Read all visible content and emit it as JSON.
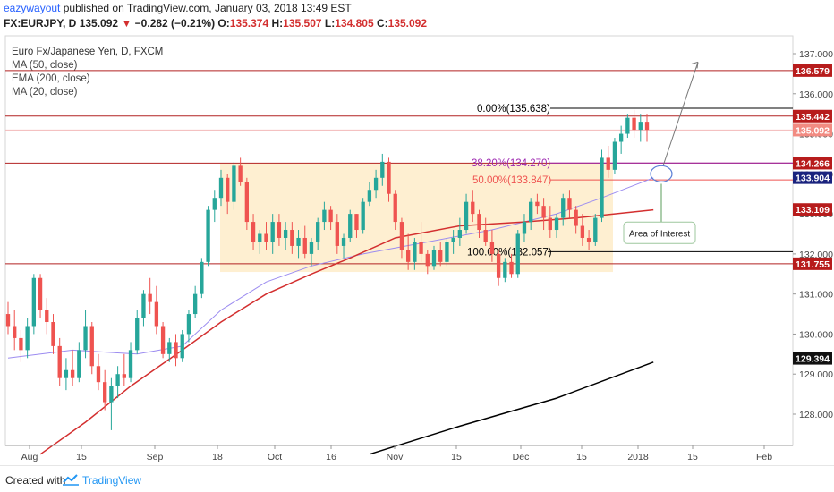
{
  "header": {
    "author": "eazywayout",
    "published_text": "published on TradingView.com, January 03, 2018 13:49 EST",
    "symbol": "FX:EURJPY, D",
    "price": "135.092",
    "change": "−0.282 (−0.21%)",
    "o_label": "O:",
    "o_value": "135.374",
    "h_label": "H:",
    "h_value": "135.507",
    "l_label": "L:",
    "l_value": "134.805",
    "c_label": "C:",
    "c_value": "135.092"
  },
  "footer": {
    "created_with": "Created with",
    "brand": "TradingView"
  },
  "colors": {
    "up": "#26a69a",
    "down": "#ef5350",
    "horizontal_lines": "#b22222",
    "ma50": "#9c8cf0",
    "ema200": "#000000",
    "ma20": "#d32f2f",
    "range_fill": "#fde9c2",
    "fib_382": "#9c27b0",
    "fib_50": "#ef5350",
    "fib_0": "#000000",
    "badge_red": "#b71c1c",
    "badge_blue": "#1a237e",
    "badge_black": "#111111"
  },
  "chart_data": {
    "type": "candlestick",
    "title": "Euro Fx/Japanese Yen, D, FXCM",
    "indicators": [
      "MA (50, close)",
      "EMA (200, close)",
      "MA (20, close)"
    ],
    "y_ticks": [
      "137.000",
      "136.000",
      "135.000",
      "134.000",
      "133.000",
      "132.000",
      "131.000",
      "130.000",
      "129.000",
      "128.000"
    ],
    "x_ticks": [
      "Aug",
      "15",
      "Sep",
      "18",
      "Oct",
      "16",
      "Nov",
      "15",
      "Dec",
      "15",
      "2018",
      "15",
      "Feb"
    ],
    "ylim": [
      127.0,
      137.5
    ],
    "horizontal_levels": [
      136.579,
      135.442,
      134.266,
      131.755
    ],
    "price_badges": [
      {
        "value": "136.579",
        "style": "red"
      },
      {
        "value": "135.442",
        "style": "red"
      },
      {
        "value": "135.092",
        "style": "salmon"
      },
      {
        "value": "134.266",
        "style": "red"
      },
      {
        "value": "133.904",
        "style": "blue"
      },
      {
        "value": "133.109",
        "style": "red"
      },
      {
        "value": "131.755",
        "style": "red"
      },
      {
        "value": "129.394",
        "style": "black"
      }
    ],
    "fibonacci": [
      {
        "label": "0.00%(135.638)",
        "value": 135.638
      },
      {
        "label": "38.20%(134.270)",
        "value": 134.27
      },
      {
        "label": "50.00%(133.847)",
        "value": 133.847
      },
      {
        "label": "100.00%(132.057)",
        "value": 132.057
      }
    ],
    "annotation": "Area of Interest",
    "range_box": {
      "top": 134.27,
      "bottom": 131.55
    },
    "candles": [
      [
        130.5,
        130.8,
        130.0,
        130.2
      ],
      [
        130.2,
        130.6,
        129.6,
        129.9
      ],
      [
        129.9,
        130.1,
        129.3,
        129.6
      ],
      [
        129.6,
        130.4,
        129.4,
        130.2
      ],
      [
        130.2,
        131.5,
        130.0,
        131.4
      ],
      [
        131.4,
        131.5,
        130.4,
        130.6
      ],
      [
        130.6,
        130.9,
        130.0,
        130.3
      ],
      [
        130.3,
        130.5,
        129.5,
        129.7
      ],
      [
        129.7,
        129.9,
        128.7,
        128.9
      ],
      [
        128.9,
        129.4,
        128.6,
        129.1
      ],
      [
        129.1,
        129.6,
        128.7,
        128.9
      ],
      [
        128.9,
        129.8,
        128.8,
        129.6
      ],
      [
        129.6,
        130.6,
        129.4,
        130.2
      ],
      [
        130.2,
        130.3,
        129.0,
        129.2
      ],
      [
        129.2,
        129.5,
        128.6,
        128.8
      ],
      [
        128.8,
        129.1,
        128.1,
        128.3
      ],
      [
        128.3,
        128.9,
        127.6,
        128.7
      ],
      [
        128.7,
        129.2,
        128.4,
        129.0
      ],
      [
        129.0,
        129.5,
        128.7,
        128.9
      ],
      [
        128.9,
        129.8,
        128.8,
        129.6
      ],
      [
        129.6,
        130.6,
        129.5,
        130.4
      ],
      [
        130.4,
        131.1,
        130.2,
        131.0
      ],
      [
        131.0,
        131.4,
        130.5,
        130.8
      ],
      [
        130.8,
        131.2,
        130.0,
        130.2
      ],
      [
        130.2,
        130.3,
        129.4,
        129.5
      ],
      [
        129.5,
        129.9,
        129.3,
        129.8
      ],
      [
        129.8,
        130.0,
        129.2,
        129.4
      ],
      [
        129.4,
        130.1,
        129.3,
        130.0
      ],
      [
        130.0,
        130.6,
        129.8,
        130.5
      ],
      [
        130.5,
        131.2,
        130.4,
        131.0
      ],
      [
        131.0,
        131.9,
        130.9,
        131.8
      ],
      [
        131.8,
        133.2,
        131.7,
        133.1
      ],
      [
        133.1,
        133.6,
        132.8,
        133.4
      ],
      [
        133.4,
        134.1,
        133.2,
        133.9
      ],
      [
        133.9,
        134.0,
        133.0,
        133.3
      ],
      [
        133.3,
        134.3,
        133.1,
        134.2
      ],
      [
        134.2,
        134.4,
        133.7,
        133.8
      ],
      [
        133.8,
        133.9,
        132.6,
        132.8
      ],
      [
        132.8,
        133.0,
        132.1,
        132.3
      ],
      [
        132.3,
        132.6,
        132.0,
        132.5
      ],
      [
        132.5,
        132.8,
        132.1,
        132.3
      ],
      [
        132.3,
        133.0,
        132.0,
        132.8
      ],
      [
        132.8,
        133.0,
        132.2,
        132.4
      ],
      [
        132.4,
        132.8,
        132.1,
        132.6
      ],
      [
        132.6,
        132.8,
        132.0,
        132.2
      ],
      [
        132.2,
        132.6,
        131.9,
        132.4
      ],
      [
        132.4,
        132.7,
        131.9,
        132.0
      ],
      [
        132.0,
        132.4,
        131.7,
        132.3
      ],
      [
        132.3,
        132.9,
        132.1,
        132.8
      ],
      [
        132.8,
        133.3,
        132.6,
        133.1
      ],
      [
        133.1,
        133.2,
        132.6,
        132.8
      ],
      [
        132.8,
        133.0,
        132.0,
        132.2
      ],
      [
        132.2,
        132.5,
        131.9,
        132.4
      ],
      [
        132.4,
        133.1,
        132.3,
        133.0
      ],
      [
        133.0,
        133.0,
        132.4,
        132.6
      ],
      [
        132.6,
        133.4,
        132.5,
        133.3
      ],
      [
        133.3,
        133.8,
        133.2,
        133.6
      ],
      [
        133.6,
        134.1,
        133.4,
        133.9
      ],
      [
        133.9,
        134.5,
        133.7,
        134.3
      ],
      [
        134.3,
        134.4,
        133.3,
        133.5
      ],
      [
        133.5,
        133.6,
        132.6,
        132.8
      ],
      [
        132.8,
        132.9,
        131.9,
        132.1
      ],
      [
        132.1,
        132.5,
        131.6,
        131.8
      ],
      [
        131.8,
        132.4,
        131.6,
        132.3
      ],
      [
        132.3,
        132.8,
        131.8,
        132.0
      ],
      [
        132.0,
        132.1,
        131.5,
        131.7
      ],
      [
        131.7,
        132.2,
        131.6,
        132.1
      ],
      [
        132.1,
        132.3,
        131.7,
        131.8
      ],
      [
        131.8,
        132.4,
        131.7,
        132.3
      ],
      [
        132.3,
        132.6,
        132.0,
        132.4
      ],
      [
        132.4,
        132.9,
        132.2,
        132.6
      ],
      [
        132.6,
        133.5,
        132.5,
        133.3
      ],
      [
        133.3,
        133.6,
        132.8,
        133.0
      ],
      [
        133.0,
        133.1,
        132.4,
        132.6
      ],
      [
        132.6,
        132.9,
        132.2,
        132.3
      ],
      [
        132.3,
        132.6,
        131.8,
        132.0
      ],
      [
        132.0,
        132.1,
        131.2,
        131.4
      ],
      [
        131.4,
        131.9,
        131.3,
        131.8
      ],
      [
        131.8,
        132.0,
        131.4,
        131.5
      ],
      [
        131.5,
        132.6,
        131.4,
        132.5
      ],
      [
        132.5,
        133.0,
        132.3,
        132.8
      ],
      [
        132.8,
        133.4,
        132.6,
        133.3
      ],
      [
        133.3,
        133.5,
        133.0,
        133.2
      ],
      [
        133.2,
        133.4,
        132.6,
        132.9
      ],
      [
        132.9,
        133.2,
        132.4,
        132.6
      ],
      [
        132.6,
        133.0,
        132.4,
        132.9
      ],
      [
        132.9,
        133.5,
        132.7,
        133.4
      ],
      [
        133.4,
        133.6,
        132.9,
        133.1
      ],
      [
        133.1,
        133.2,
        132.5,
        132.7
      ],
      [
        132.7,
        133.0,
        132.2,
        132.4
      ],
      [
        132.4,
        132.6,
        132.1,
        132.3
      ],
      [
        132.3,
        133.0,
        132.2,
        132.9
      ],
      [
        132.9,
        134.6,
        132.8,
        134.4
      ],
      [
        134.4,
        134.7,
        133.9,
        134.1
      ],
      [
        134.1,
        134.9,
        134.0,
        134.8
      ],
      [
        134.8,
        135.2,
        134.5,
        135.0
      ],
      [
        135.0,
        135.5,
        134.9,
        135.4
      ],
      [
        135.4,
        135.6,
        134.9,
        135.1
      ],
      [
        135.1,
        135.5,
        134.8,
        135.3
      ],
      [
        135.3,
        135.5,
        134.8,
        135.1
      ]
    ],
    "ma50": [
      [
        0,
        129.4
      ],
      [
        10,
        129.6
      ],
      [
        20,
        129.5
      ],
      [
        27,
        129.7
      ],
      [
        33,
        130.6
      ],
      [
        40,
        131.3
      ],
      [
        47,
        131.7
      ],
      [
        55,
        132.0
      ],
      [
        65,
        132.3
      ],
      [
        75,
        132.6
      ],
      [
        85,
        133.0
      ],
      [
        92,
        133.4
      ],
      [
        100,
        133.9
      ]
    ],
    "ema200": [
      [
        56,
        127.0
      ],
      [
        70,
        127.7
      ],
      [
        85,
        128.4
      ],
      [
        100,
        129.3
      ]
    ],
    "ma20": [
      [
        5,
        127.0
      ],
      [
        12,
        127.8
      ],
      [
        19,
        128.7
      ],
      [
        27,
        129.6
      ],
      [
        33,
        130.3
      ],
      [
        40,
        131.0
      ],
      [
        47,
        131.5
      ],
      [
        53,
        131.9
      ],
      [
        60,
        132.4
      ],
      [
        70,
        132.7
      ],
      [
        80,
        132.8
      ],
      [
        88,
        132.9
      ],
      [
        100,
        133.1
      ]
    ]
  }
}
